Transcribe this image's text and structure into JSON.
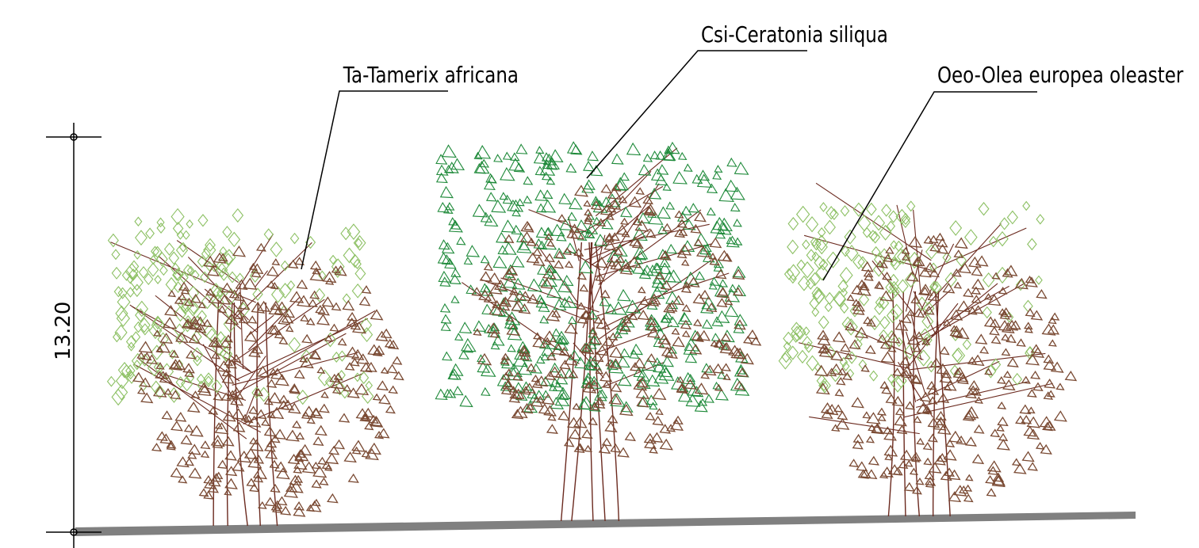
{
  "dimension": {
    "value": "13.20"
  },
  "trees": [
    {
      "label": "Ta-Tamerix africana",
      "light_foliage_color": "#8cc063",
      "dark_foliage_color": "#7a4a33",
      "trunk_color": "#6b2a1f"
    },
    {
      "label": "Csi-Ceratonia siliqua",
      "light_foliage_color": "#1f8a3a",
      "dark_foliage_color": "#7a4a33",
      "trunk_color": "#6b2a1f"
    },
    {
      "label": "Oeo-Olea europea oleaster",
      "light_foliage_color": "#8cc063",
      "dark_foliage_color": "#7a4a33",
      "trunk_color": "#6b2a1f"
    }
  ],
  "ground_color": "#808080",
  "line_color": "#000000"
}
